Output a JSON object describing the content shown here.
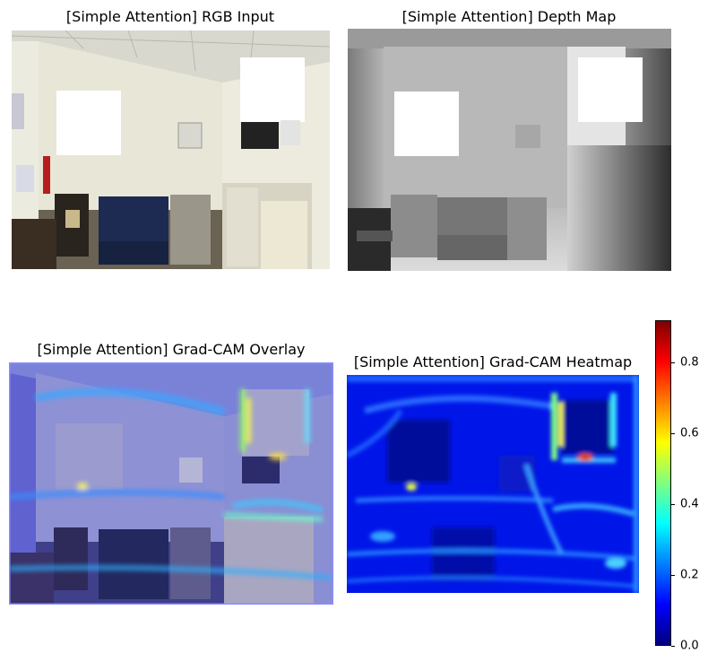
{
  "figure": {
    "panels": [
      {
        "title": "[Simple Attention] RGB Input",
        "kind": "rgb"
      },
      {
        "title": "[Simple Attention] Depth Map",
        "kind": "depth"
      },
      {
        "title": "[Simple Attention] Grad-CAM Overlay",
        "kind": "overlay"
      },
      {
        "title": "[Simple Attention] Grad-CAM Heatmap",
        "kind": "heatmap"
      }
    ]
  },
  "chart_data": {
    "type": "heatmap",
    "title": "[Simple Attention] Grad-CAM Heatmap",
    "colormap": "jet",
    "colorbar": {
      "vmin": 0.0,
      "vmax": 0.92,
      "ticks": [
        0.0,
        0.2,
        0.4,
        0.6,
        0.8
      ],
      "tick_labels": [
        "0.0",
        "0.2",
        "0.4",
        "0.6",
        "0.8"
      ]
    },
    "jet_stops": [
      "#00007f",
      "#0000ff",
      "#007fff",
      "#00ffff",
      "#7fff7f",
      "#ffff00",
      "#ff7f00",
      "#ff0000",
      "#7f0000"
    ]
  }
}
